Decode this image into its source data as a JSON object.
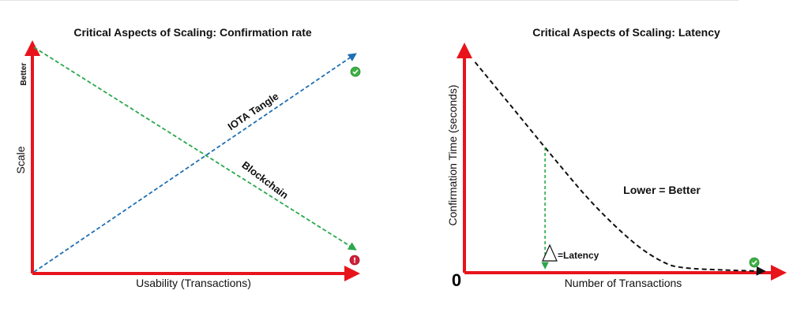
{
  "chart_data": [
    {
      "type": "line",
      "title": "Critical Aspects of Scaling: Confirmation rate",
      "xlabel": "Usability (Transactions)",
      "ylabel": "Scale",
      "y_top_label": "Better",
      "xlim": [
        0,
        1
      ],
      "ylim": [
        0,
        1
      ],
      "series": [
        {
          "name": "IOTA Tangle",
          "x": [
            0,
            1
          ],
          "y": [
            0,
            0.97
          ],
          "color": "#1f6fb4",
          "end_marker": "green-check-icon"
        },
        {
          "name": "Blockchain",
          "x": [
            0,
            1
          ],
          "y": [
            1.0,
            0.1
          ],
          "color": "#2aa84a",
          "end_marker": "red-warning-icon"
        }
      ]
    },
    {
      "type": "line",
      "title": "Critical Aspects of Scaling: Latency",
      "xlabel": "Number of Transactions",
      "ylabel": "Confirmation Time (seconds)",
      "origin_label": "0",
      "annotation": "Lower = Better",
      "latency_label": "=Latency",
      "xlim": [
        0,
        1
      ],
      "ylim": [
        0,
        1
      ],
      "series": [
        {
          "name": "",
          "x": [
            0.03,
            0.15,
            0.3,
            0.42,
            0.55,
            0.65,
            0.72,
            0.85,
            0.98
          ],
          "y": [
            0.94,
            0.74,
            0.49,
            0.3,
            0.13,
            0.04,
            0.015,
            0.005,
            0.0
          ],
          "color": "#111111",
          "end_marker": "green-check-icon"
        }
      ],
      "latency_marker_x": 0.26
    }
  ],
  "colors": {
    "axis": "#e8141b",
    "tangle": "#1f6fb4",
    "blockchain": "#2aa84a",
    "latency_curve": "#111111",
    "latency_drop": "#2aa84a",
    "check": "#3cb043",
    "warning": "#d0203a"
  }
}
